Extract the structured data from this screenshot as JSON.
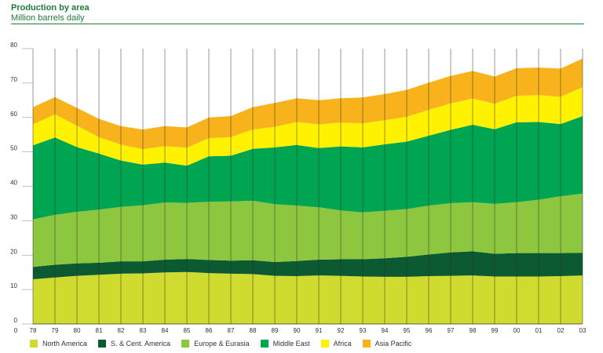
{
  "header": {
    "title": "Production by area",
    "subtitle": "Million barrels daily"
  },
  "chart_data": {
    "type": "area",
    "stacked": true,
    "title": "Production by area",
    "ylabel": "Million barrels daily",
    "xlabel": "",
    "ylim": [
      0,
      80
    ],
    "yticks": [
      "0",
      "10",
      "20",
      "30",
      "40",
      "50",
      "60",
      "70",
      "80"
    ],
    "categories": [
      "78",
      "79",
      "80",
      "81",
      "82",
      "83",
      "84",
      "85",
      "86",
      "87",
      "88",
      "89",
      "90",
      "91",
      "92",
      "93",
      "94",
      "95",
      "96",
      "97",
      "98",
      "99",
      "00",
      "01",
      "02",
      "03"
    ],
    "grid": "vertical",
    "legend": "bottom",
    "series": [
      {
        "name": "North America",
        "color": "#cfdc2f",
        "values": [
          13.0,
          13.5,
          14.0,
          14.3,
          14.6,
          14.7,
          15.0,
          15.1,
          14.8,
          14.6,
          14.5,
          14.0,
          13.9,
          14.1,
          14.0,
          13.8,
          13.7,
          13.7,
          13.9,
          14.0,
          14.1,
          13.8,
          13.8,
          13.8,
          13.9,
          14.1
        ]
      },
      {
        "name": "S. & Cent. America",
        "color": "#0b5a31",
        "values": [
          3.6,
          3.7,
          3.6,
          3.5,
          3.6,
          3.5,
          3.7,
          3.8,
          3.8,
          3.8,
          4.0,
          4.0,
          4.4,
          4.6,
          4.8,
          5.0,
          5.4,
          5.8,
          6.3,
          6.8,
          7.0,
          6.6,
          6.8,
          6.8,
          6.7,
          6.6
        ]
      },
      {
        "name": "Europe & Eurasia",
        "color": "#8dc63f",
        "values": [
          13.8,
          14.5,
          15.0,
          15.4,
          15.8,
          16.3,
          16.6,
          16.3,
          16.9,
          17.2,
          17.3,
          16.8,
          16.1,
          15.2,
          14.2,
          13.6,
          13.8,
          13.9,
          14.2,
          14.3,
          14.3,
          14.5,
          14.8,
          15.5,
          16.5,
          17.2
        ]
      },
      {
        "name": "Middle East",
        "color": "#00a551",
        "values": [
          21.5,
          22.5,
          18.8,
          16.3,
          13.5,
          11.8,
          11.6,
          10.8,
          13.2,
          13.3,
          15.1,
          16.5,
          17.6,
          17.2,
          18.6,
          18.9,
          19.3,
          19.6,
          20.3,
          21.3,
          22.5,
          21.7,
          23.2,
          22.6,
          21.0,
          22.5
        ]
      },
      {
        "name": "Africa",
        "color": "#fff200",
        "values": [
          6.1,
          6.7,
          6.2,
          4.8,
          4.6,
          4.5,
          4.8,
          5.2,
          5.3,
          5.4,
          5.6,
          6.0,
          6.7,
          6.9,
          6.9,
          7.0,
          7.0,
          7.2,
          7.5,
          7.7,
          7.6,
          7.4,
          7.7,
          7.8,
          7.9,
          8.4
        ]
      },
      {
        "name": "Asia Pacific",
        "color": "#f7b21c",
        "values": [
          5.0,
          5.0,
          5.2,
          5.3,
          5.4,
          5.7,
          5.8,
          5.9,
          6.0,
          6.1,
          6.5,
          6.9,
          6.9,
          7.0,
          7.1,
          7.5,
          7.6,
          7.8,
          7.9,
          8.0,
          8.0,
          7.9,
          8.0,
          8.0,
          8.2,
          8.3
        ]
      }
    ]
  }
}
